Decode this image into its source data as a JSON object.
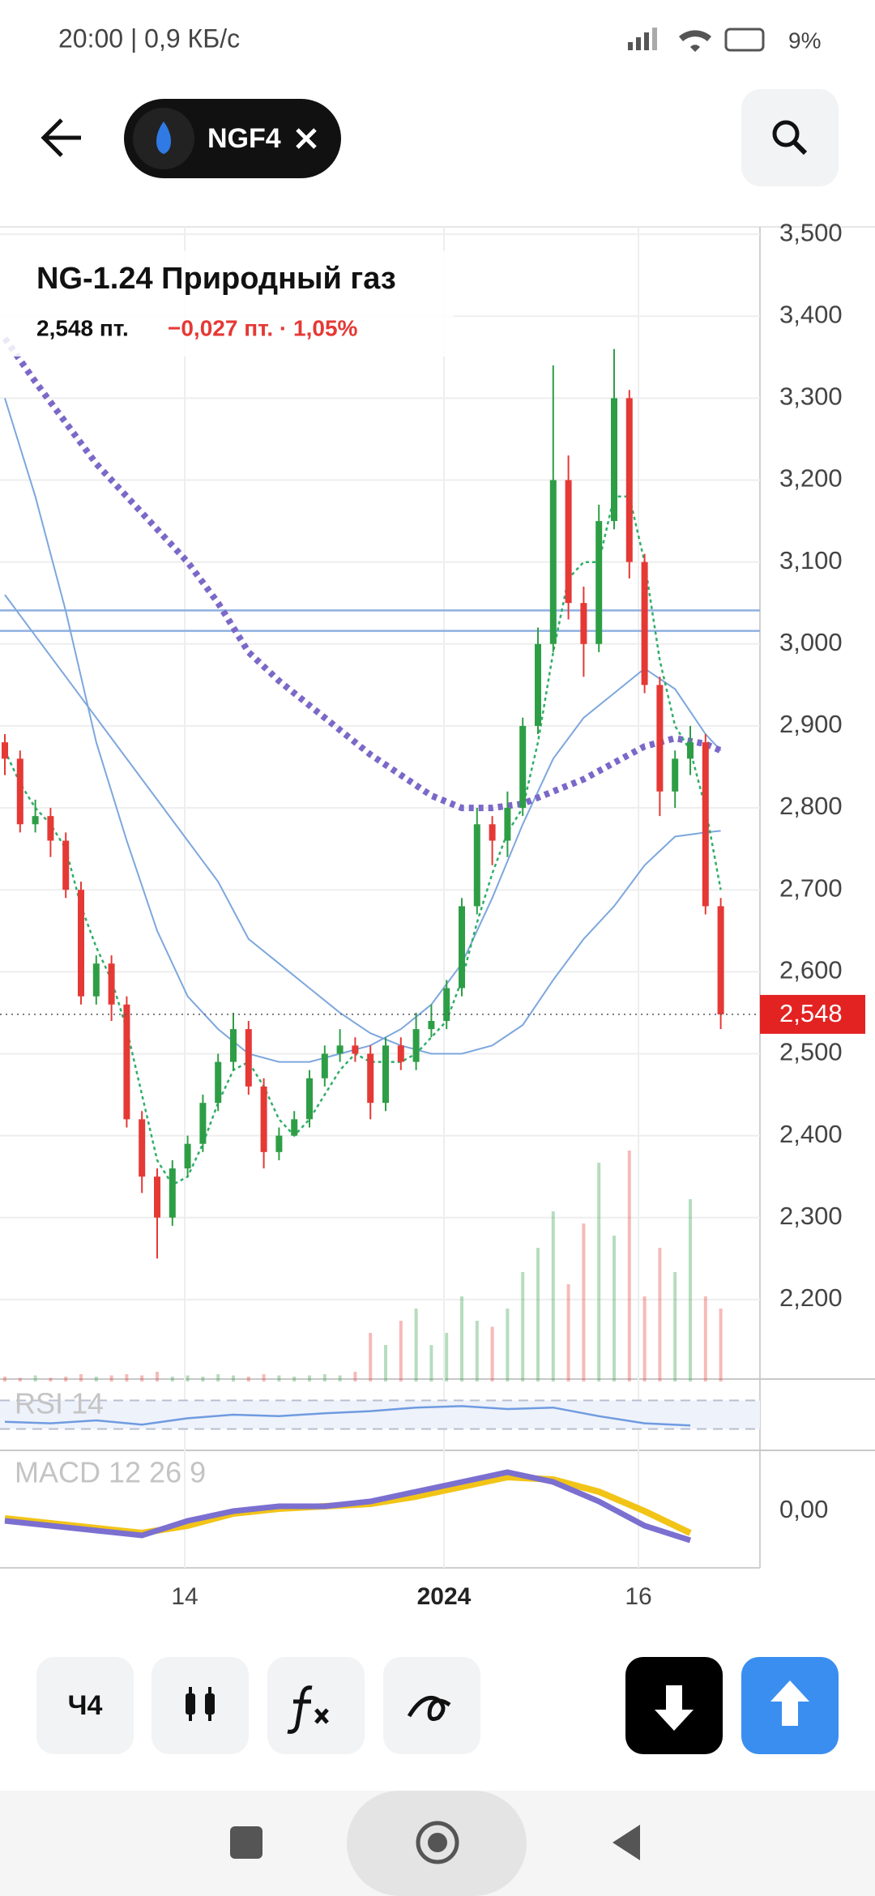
{
  "status_bar": {
    "time": "20:00 | 0,9 КБ/с",
    "battery": "9%"
  },
  "header": {
    "ticker": "NGF4"
  },
  "chart": {
    "type": "candlestick",
    "title": "NG-1.24 Природный газ",
    "price": "2,548 пт.",
    "change": "−0,027 пт. · 1,05%",
    "last": 2548,
    "last_label": "2,548",
    "ylim": [
      2100,
      3510
    ],
    "yticks": [
      {
        "value": 3500,
        "label": "3,500"
      },
      {
        "value": 3400,
        "label": "3,400"
      },
      {
        "value": 3300,
        "label": "3,300"
      },
      {
        "value": 3200,
        "label": "3,200"
      },
      {
        "value": 3100,
        "label": "3,100"
      },
      {
        "value": 3000,
        "label": "3,000"
      },
      {
        "value": 2900,
        "label": "2,900"
      },
      {
        "value": 2800,
        "label": "2,800"
      },
      {
        "value": 2700,
        "label": "2,700"
      },
      {
        "value": 2600,
        "label": "2,600"
      },
      {
        "value": 2500,
        "label": "2,500"
      },
      {
        "value": 2400,
        "label": "2,400"
      },
      {
        "value": 2300,
        "label": "2,300"
      },
      {
        "value": 2200,
        "label": "2,200"
      }
    ],
    "x_labels": [
      "14",
      "2024",
      "16"
    ],
    "up_color": "#2e9e46",
    "down_color": "#e53935",
    "candles": {
      "open": [
        2880,
        2860,
        2780,
        2790,
        2760,
        2700,
        2570,
        2610,
        2560,
        2420,
        2350,
        2300,
        2360,
        2390,
        2440,
        2490,
        2530,
        2460,
        2380,
        2400,
        2420,
        2470,
        2500,
        2510,
        2500,
        2440,
        2510,
        2490,
        2530,
        2540,
        2580,
        2680,
        2780,
        2760,
        2800,
        2900,
        3000,
        3200,
        3050,
        3000,
        3150,
        3300,
        3100,
        2950,
        2820,
        2860,
        2880,
        2680
      ],
      "high": [
        2890,
        2870,
        2810,
        2800,
        2770,
        2710,
        2620,
        2620,
        2570,
        2430,
        2360,
        2370,
        2400,
        2450,
        2500,
        2550,
        2540,
        2470,
        2410,
        2430,
        2480,
        2510,
        2530,
        2520,
        2510,
        2520,
        2520,
        2550,
        2560,
        2590,
        2690,
        2800,
        2790,
        2820,
        2910,
        3020,
        3340,
        3230,
        3070,
        3170,
        3360,
        3310,
        3110,
        2960,
        2870,
        2900,
        2890,
        2690
      ],
      "low": [
        2840,
        2770,
        2770,
        2740,
        2690,
        2560,
        2560,
        2540,
        2410,
        2330,
        2250,
        2290,
        2350,
        2380,
        2430,
        2480,
        2450,
        2360,
        2370,
        2400,
        2410,
        2460,
        2490,
        2490,
        2420,
        2430,
        2480,
        2480,
        2520,
        2530,
        2570,
        2670,
        2730,
        2740,
        2790,
        2890,
        2990,
        3030,
        2960,
        2990,
        3140,
        3080,
        2940,
        2790,
        2800,
        2840,
        2670,
        2530
      ],
      "close": [
        2860,
        2780,
        2790,
        2760,
        2700,
        2570,
        2610,
        2560,
        2420,
        2350,
        2300,
        2360,
        2390,
        2440,
        2490,
        2530,
        2460,
        2380,
        2400,
        2420,
        2470,
        2500,
        2510,
        2500,
        2440,
        2510,
        2490,
        2530,
        2540,
        2580,
        2680,
        2780,
        2760,
        2800,
        2900,
        3000,
        3200,
        3050,
        3000,
        3150,
        3300,
        3100,
        2950,
        2820,
        2860,
        2880,
        2680,
        2548
      ]
    },
    "volume": [
      4,
      3,
      5,
      3,
      4,
      6,
      4,
      5,
      6,
      5,
      8,
      4,
      5,
      4,
      6,
      5,
      4,
      6,
      5,
      4,
      5,
      6,
      5,
      8,
      40,
      30,
      50,
      60,
      30,
      40,
      70,
      50,
      45,
      60,
      90,
      110,
      140,
      80,
      130,
      180,
      120,
      190,
      70,
      110,
      90,
      150,
      70,
      60
    ],
    "fast_ma": {
      "color": "#2fae6a",
      "values": [
        2870,
        2830,
        2800,
        2780,
        2750,
        2680,
        2630,
        2590,
        2530,
        2450,
        2370,
        2340,
        2350,
        2390,
        2440,
        2480,
        2490,
        2460,
        2420,
        2400,
        2420,
        2450,
        2480,
        2500,
        2490,
        2490,
        2490,
        2500,
        2520,
        2540,
        2590,
        2660,
        2720,
        2770,
        2800,
        2880,
        2990,
        3080,
        3100,
        3100,
        3180,
        3180,
        3100,
        2980,
        2900,
        2870,
        2800,
        2700
      ]
    },
    "ma_index": [
      0,
      2,
      4,
      6,
      8,
      10,
      12,
      14,
      16,
      18,
      20,
      22,
      24,
      26,
      28,
      30,
      32,
      34,
      36,
      38,
      40,
      42,
      44,
      46,
      47
    ],
    "lines": [
      {
        "color": "#7da7dd",
        "width": 2,
        "dotted": false,
        "values": [
          3300,
          3180,
          3040,
          2880,
          2760,
          2650,
          2570,
          2530,
          2500,
          2490,
          2490,
          2500,
          2510,
          2530,
          2560,
          2610,
          2690,
          2780,
          2860,
          2910,
          2940,
          2970,
          2945,
          2890,
          2870
        ]
      },
      {
        "color": "#7da7dd",
        "width": 2,
        "dotted": false,
        "values": [
          3060,
          3010,
          2960,
          2910,
          2860,
          2810,
          2760,
          2710,
          2640,
          2610,
          2580,
          2550,
          2525,
          2510,
          2500,
          2500,
          2510,
          2535,
          2590,
          2640,
          2680,
          2730,
          2765,
          2770,
          2772
        ]
      },
      {
        "color": "#7b68c8",
        "width": 8,
        "dotted": true,
        "values": [
          3373,
          3320,
          3270,
          3220,
          3180,
          3140,
          3100,
          3050,
          2990,
          2955,
          2925,
          2895,
          2865,
          2840,
          2815,
          2800,
          2800,
          2805,
          2820,
          2835,
          2855,
          2875,
          2885,
          2878,
          2870
        ]
      }
    ],
    "levels": [
      3041,
      3016
    ],
    "level_color": "#8fb0e0",
    "rsi": {
      "label": "RSI 14",
      "levels": [
        30,
        70
      ],
      "index": [
        0,
        3,
        6,
        9,
        12,
        15,
        18,
        21,
        24,
        27,
        30,
        33,
        36,
        39,
        42,
        45
      ],
      "values": [
        40,
        38,
        42,
        36,
        45,
        50,
        48,
        52,
        55,
        60,
        62,
        58,
        60,
        48,
        38,
        35
      ]
    },
    "macd": {
      "label": "MACD 12 26 9",
      "tick": {
        "value": 0,
        "label": "0,00"
      },
      "index": [
        0,
        3,
        6,
        9,
        12,
        15,
        18,
        21,
        24,
        27,
        30,
        33,
        36,
        39,
        42,
        45
      ],
      "macd": [
        -0.02,
        -0.03,
        -0.04,
        -0.05,
        -0.02,
        0,
        0.01,
        0.01,
        0.02,
        0.04,
        0.06,
        0.08,
        0.06,
        0.02,
        -0.03,
        -0.06
      ],
      "signal": [
        -0.015,
        -0.025,
        -0.035,
        -0.045,
        -0.03,
        -0.005,
        0.005,
        0.01,
        0.015,
        0.03,
        0.05,
        0.07,
        0.065,
        0.04,
        0,
        -0.045
      ]
    }
  },
  "toolbar": {
    "interval": "Ч4"
  }
}
